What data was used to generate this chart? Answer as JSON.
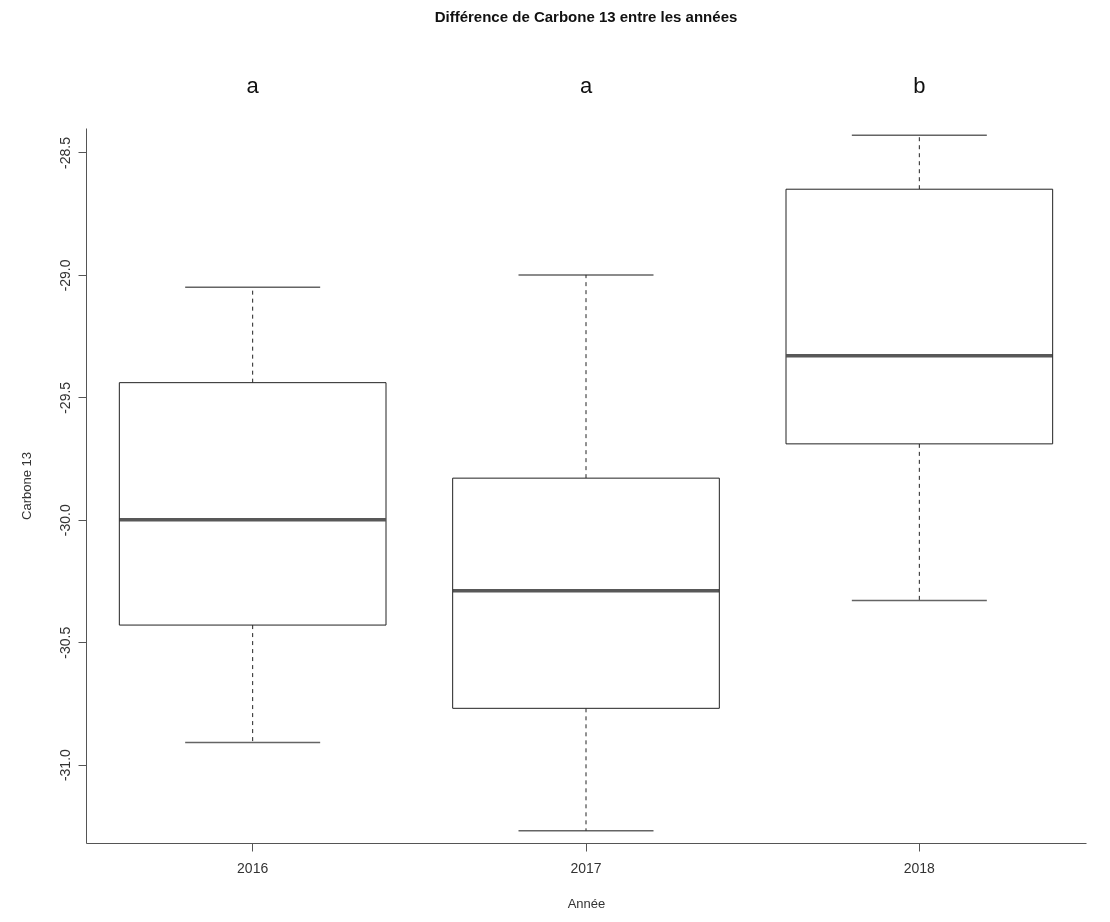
{
  "chart_data": {
    "type": "box",
    "title": "Différence de Carbone 13 entre les années",
    "xlabel": "Année",
    "ylabel": "Carbone 13",
    "categories": [
      "2016",
      "2017",
      "2018"
    ],
    "boxes": [
      {
        "low": -30.91,
        "q1": -30.43,
        "median": -30.0,
        "q3": -29.44,
        "high": -29.05
      },
      {
        "low": -31.27,
        "q1": -30.77,
        "median": -30.29,
        "q3": -29.83,
        "high": -29.0
      },
      {
        "low": -30.33,
        "q1": -29.69,
        "median": -29.33,
        "q3": -28.65,
        "high": -28.43
      }
    ],
    "ylim": [
      -31.32,
      -28.4
    ],
    "yticks": [
      {
        "value": -31,
        "label": "-31.0"
      },
      {
        "value": -30.5,
        "label": "-30.5"
      },
      {
        "value": -30,
        "label": "-30.0"
      },
      {
        "value": -29.5,
        "label": "-29.5"
      },
      {
        "value": -29,
        "label": "-29.0"
      },
      {
        "value": -28.5,
        "label": "-28.5"
      }
    ],
    "annotations": [
      "a",
      "a",
      "b"
    ]
  }
}
